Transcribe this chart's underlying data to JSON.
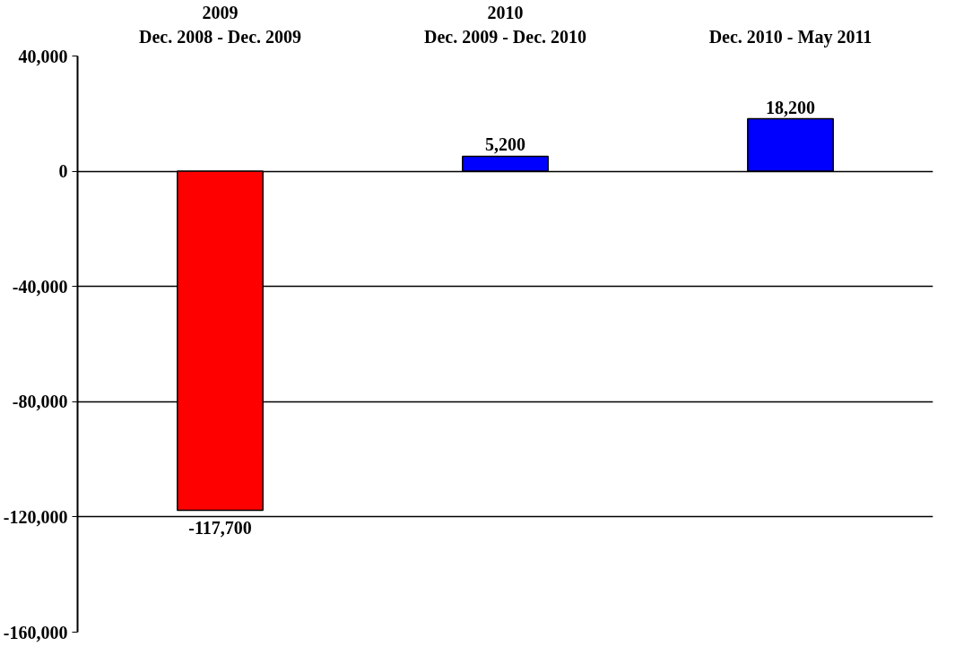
{
  "chart_data": {
    "type": "bar",
    "categories": [
      "2009\nDec. 2008 - Dec. 2009",
      "2010\nDec. 2009 - Dec. 2010",
      "Dec. 2010 - May 2011"
    ],
    "values": [
      -117700,
      5200,
      18200
    ],
    "colors": [
      "#ff0000",
      "#0000ff",
      "#0000ff"
    ],
    "value_labels": [
      "-117,700",
      "5,200",
      "18,200"
    ],
    "ylim": [
      -160000,
      40000
    ],
    "yticks": [
      {
        "value": -160000,
        "label": "-160,000"
      },
      {
        "value": -120000,
        "label": "-120,000"
      },
      {
        "value": -80000,
        "label": "-80,000"
      },
      {
        "value": -40000,
        "label": "-40,000"
      },
      {
        "value": 0,
        "label": "0"
      },
      {
        "value": 40000,
        "label": "40,000"
      }
    ],
    "grid": "y"
  }
}
